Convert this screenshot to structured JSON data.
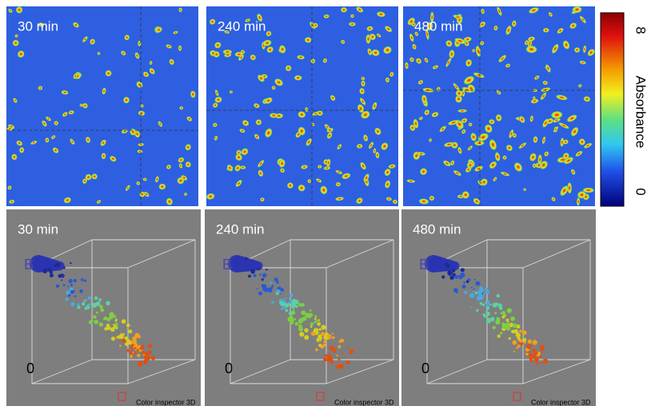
{
  "panels": [
    {
      "top_label": "30 min",
      "bottom_label": "30 min"
    },
    {
      "top_label": "240 min",
      "bottom_label": "240 min"
    },
    {
      "top_label": "480 min",
      "bottom_label": "480 min"
    }
  ],
  "axis_b": "B",
  "axis_zero": "0",
  "footer": "Color inspector 3D",
  "colorbar": {
    "max_label": "8",
    "min_label": "0",
    "title": "Absorbance"
  }
}
